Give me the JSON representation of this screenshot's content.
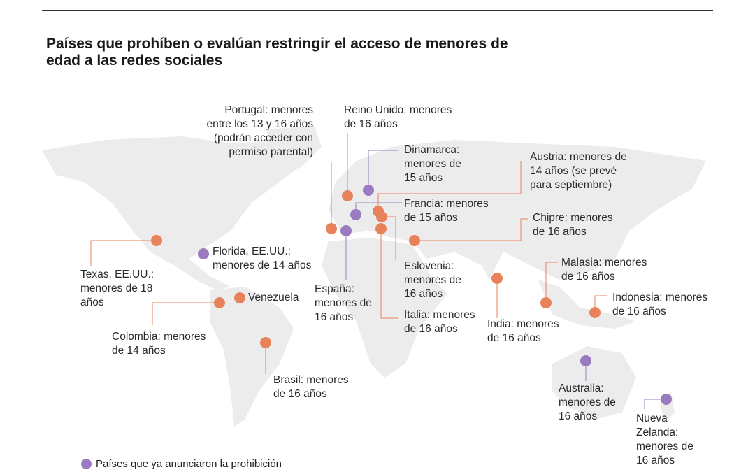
{
  "title": "Países que prohíben o evalúan restringir el acceso de menores de edad a las redes sociales",
  "colors": {
    "announced": "#9b7bbf",
    "evaluating": "#e8825a",
    "land": "#ececec"
  },
  "legend": {
    "announced": "Países que ya anunciaron la prohibición"
  },
  "countries": [
    {
      "id": "portugal",
      "label": "Portugal: menores\nentre los 13 y 16 años\n(podrán acceder con\npermiso parental)",
      "status": "evaluating"
    },
    {
      "id": "reino-unido",
      "label": "Reino Unido: menores\nde 16 años",
      "status": "evaluating"
    },
    {
      "id": "dinamarca",
      "label": "Dinamarca:\nmenores de\n15 años",
      "status": "announced"
    },
    {
      "id": "austria",
      "label": "Austria: menores de\n14 años (se prevé\npara septiembre)",
      "status": "evaluating"
    },
    {
      "id": "francia",
      "label": "Francia: menores\nde 15 años",
      "status": "announced"
    },
    {
      "id": "chipre",
      "label": "Chipre: menores\nde 16 años",
      "status": "evaluating"
    },
    {
      "id": "eslovenia",
      "label": "Eslovenia:\nmenores de\n16 años",
      "status": "evaluating"
    },
    {
      "id": "italia",
      "label": "Italia: menores\nde 16 años",
      "status": "evaluating"
    },
    {
      "id": "espana",
      "label": "España:\nmenores de\n16 años",
      "status": "announced"
    },
    {
      "id": "texas",
      "label": "Texas, EE.UU.:\nmenores de 18\naños",
      "status": "evaluating"
    },
    {
      "id": "florida",
      "label": "Florida, EE.UU.:\nmenores de 14 años",
      "status": "announced"
    },
    {
      "id": "venezuela",
      "label": "Venezuela",
      "status": "evaluating"
    },
    {
      "id": "colombia",
      "label": "Colombia: menores\nde 14 años",
      "status": "evaluating"
    },
    {
      "id": "brasil",
      "label": "Brasil: menores\nde 16 años",
      "status": "evaluating"
    },
    {
      "id": "india",
      "label": "India: menores\nde 16 años",
      "status": "evaluating"
    },
    {
      "id": "malasia",
      "label": "Malasia: menores\nde 16 años",
      "status": "evaluating"
    },
    {
      "id": "indonesia",
      "label": "Indonesia: menores\nde 16 años",
      "status": "evaluating"
    },
    {
      "id": "australia",
      "label": "Australia:\nmenores de\n16 años",
      "status": "announced"
    },
    {
      "id": "nueva-zelanda",
      "label": "Nueva\nZelanda:\nmenores de\n16 años",
      "status": "announced"
    }
  ]
}
